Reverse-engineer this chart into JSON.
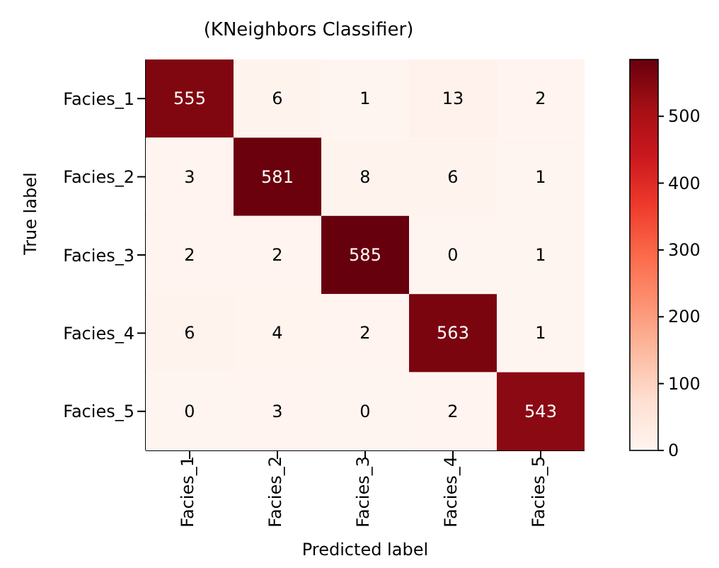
{
  "chart_data": {
    "type": "heatmap",
    "title": "(KNeighbors Classifier)",
    "xlabel": "Predicted label",
    "ylabel": "True label",
    "categories": [
      "Facies_1",
      "Facies_2",
      "Facies_3",
      "Facies_4",
      "Facies_5"
    ],
    "y_categories": [
      "Facies_1",
      "Facies_2",
      "Facies_3",
      "Facies_4",
      "Facies_5"
    ],
    "cells": [
      [
        555,
        6,
        1,
        13,
        2
      ],
      [
        3,
        581,
        8,
        6,
        1
      ],
      [
        2,
        2,
        585,
        0,
        1
      ],
      [
        6,
        4,
        2,
        563,
        1
      ],
      [
        0,
        3,
        0,
        2,
        543
      ]
    ],
    "data_labels": true,
    "clim": [
      0,
      585
    ],
    "cticks": [
      0,
      100,
      200,
      300,
      400,
      500
    ]
  }
}
